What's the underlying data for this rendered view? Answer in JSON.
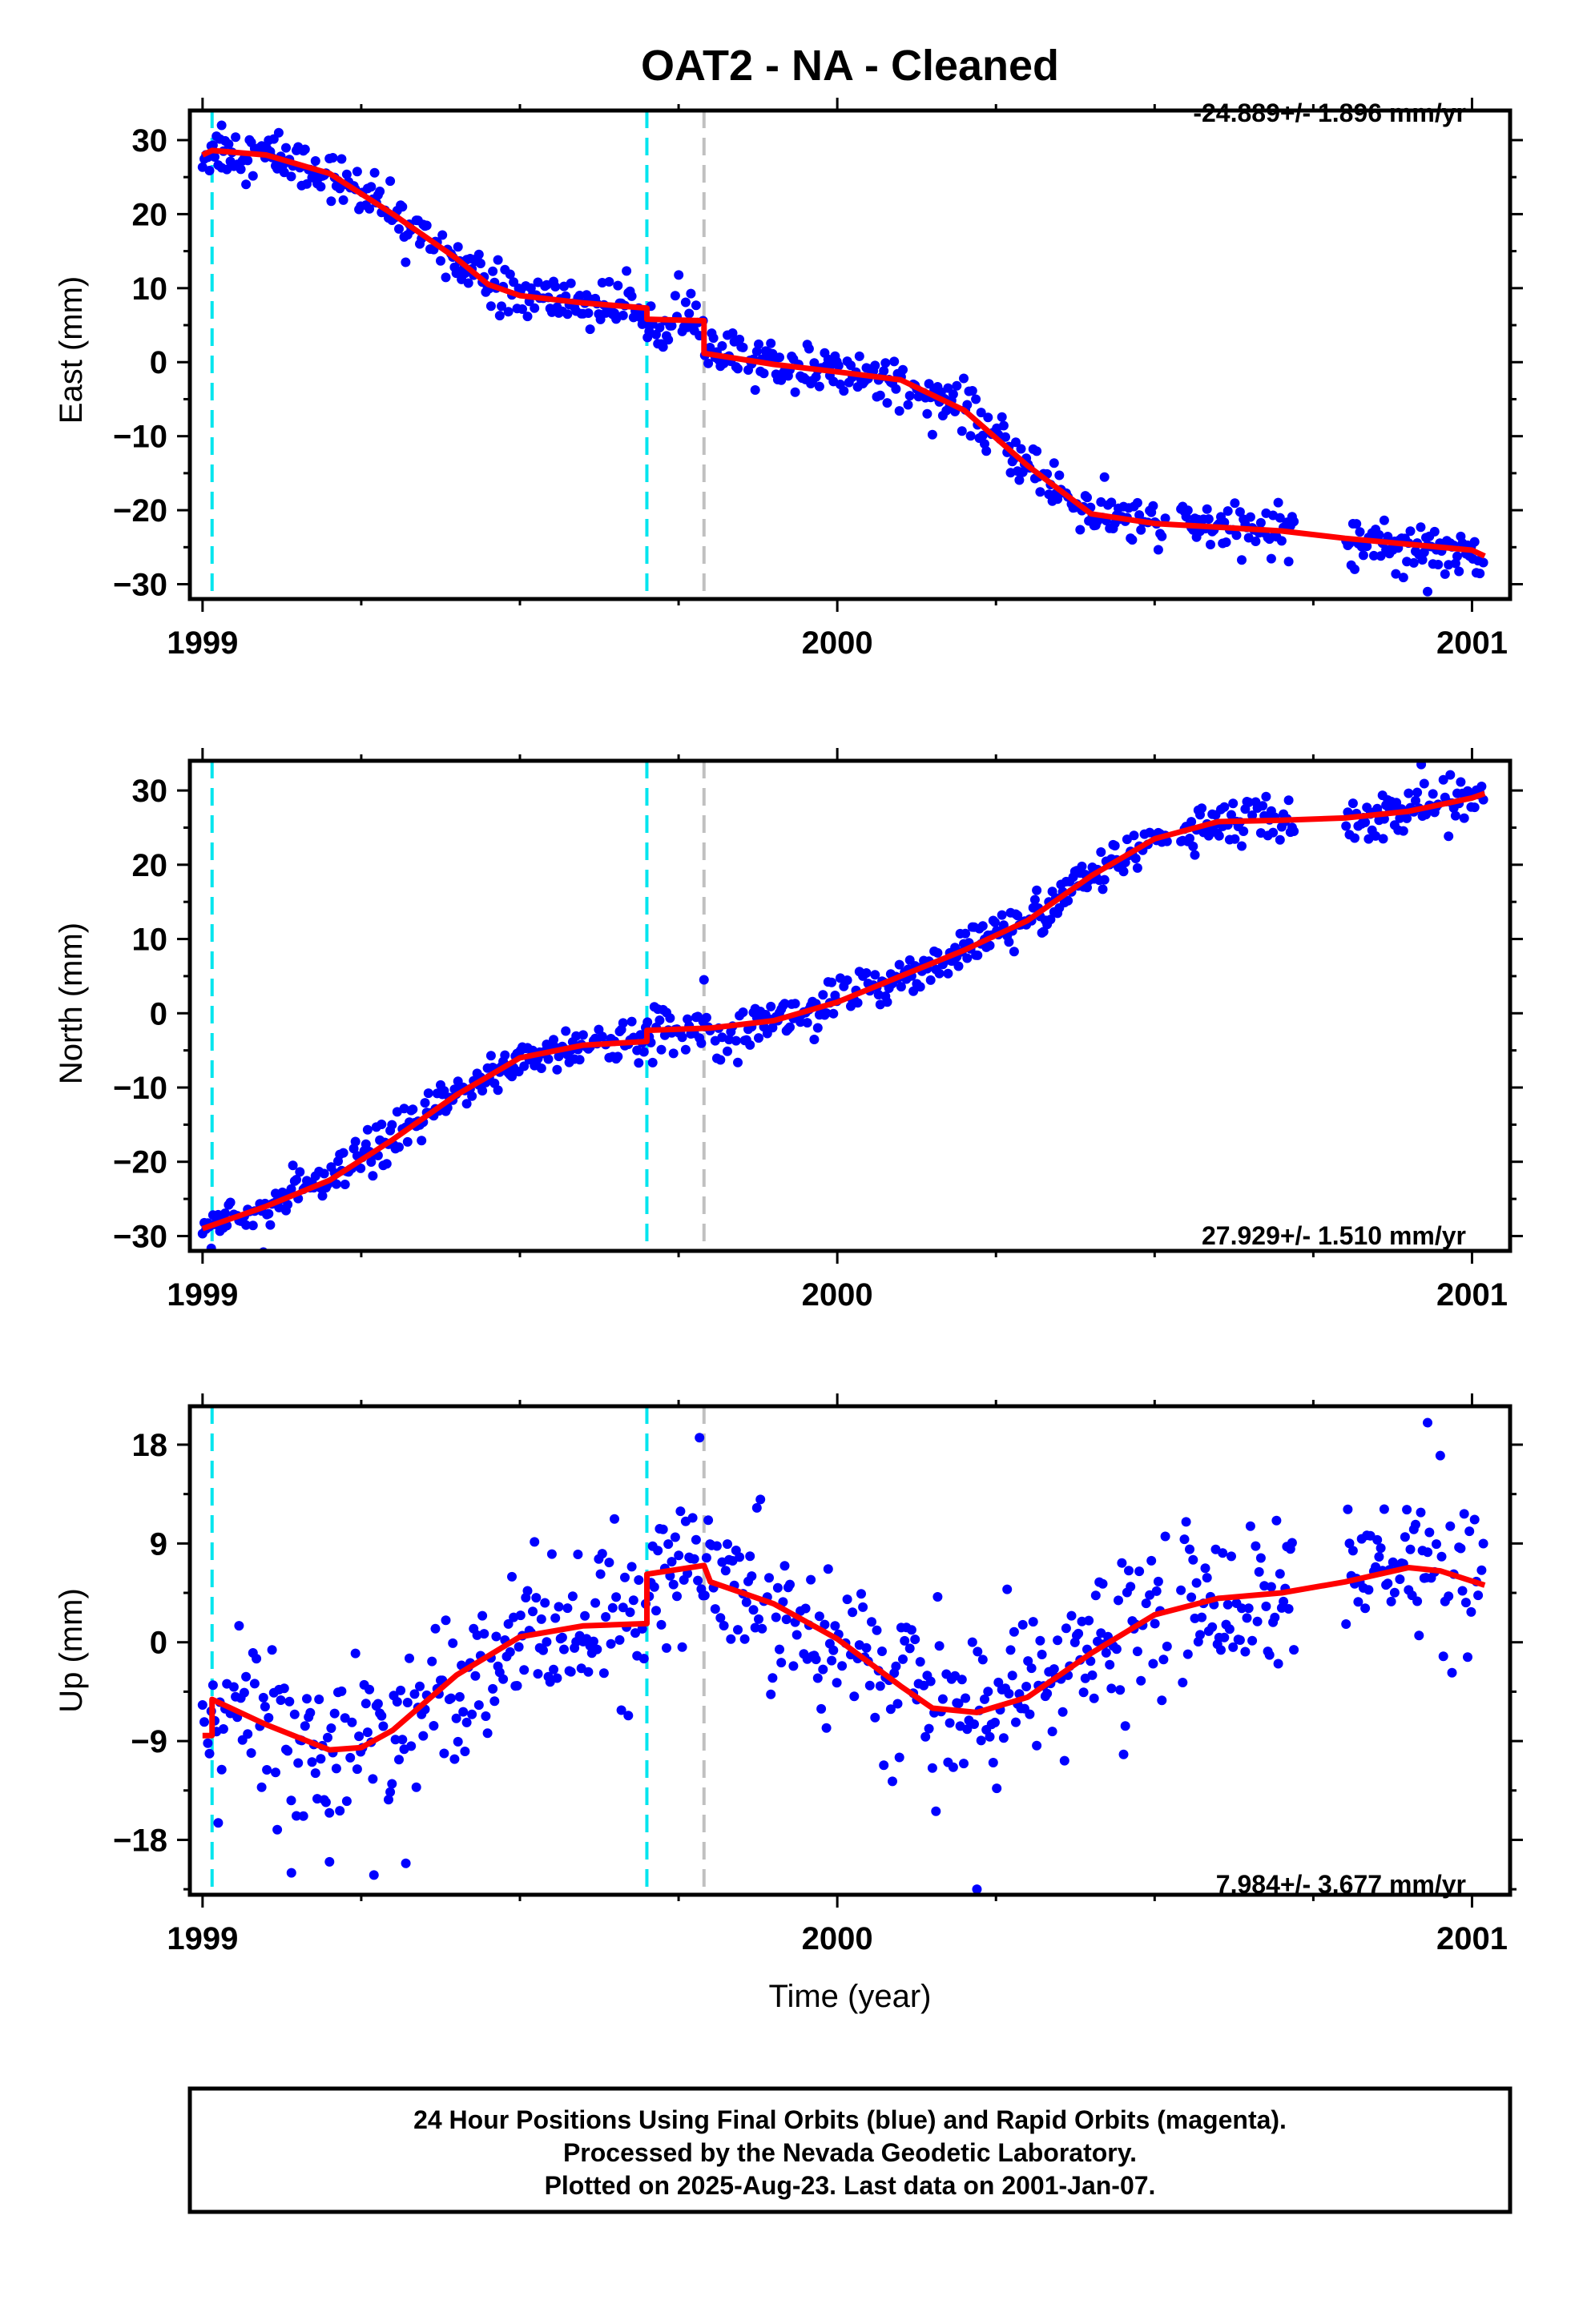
{
  "title": "OAT2  - NA - Cleaned",
  "colors": {
    "points": "#0000ff",
    "model": "#ff0000",
    "equipment_change": "#00e5ee",
    "earthquake": "#c0c0c0"
  },
  "chart_data": [
    {
      "type": "scatter",
      "component": "east",
      "ylabel": "East (mm)",
      "xlim": [
        1998.98,
        2001.06
      ],
      "ylim": [
        -32,
        34
      ],
      "yticks": [
        -30,
        -20,
        -10,
        0,
        10,
        20,
        30
      ],
      "xticks": [
        "1999",
        "2000",
        "2001"
      ],
      "rate_text": "-24.889+/- 1.896 mm/yr",
      "rate_position": "top-right",
      "vlines_cyan": [
        1999.015,
        1999.7
      ],
      "vlines_gray": [
        1999.79
      ],
      "offsets": [
        {
          "at": 1999.7,
          "jump": -1.5
        },
        {
          "at": 1999.79,
          "jump": -4.0
        }
      ],
      "model": [
        [
          1999.0,
          28.0
        ],
        [
          1999.015,
          28.6
        ],
        [
          1999.1,
          28.0
        ],
        [
          1999.2,
          25.5
        ],
        [
          1999.3,
          20.0
        ],
        [
          1999.4,
          14.0
        ],
        [
          1999.45,
          10.5
        ],
        [
          1999.5,
          9.0
        ],
        [
          1999.6,
          8.0
        ],
        [
          1999.7,
          7.3
        ],
        [
          1999.7,
          5.8
        ],
        [
          1999.79,
          5.6
        ],
        [
          1999.79,
          1.2
        ],
        [
          1999.9,
          -0.3
        ],
        [
          2000.0,
          -1.3
        ],
        [
          2000.1,
          -2.4
        ],
        [
          2000.2,
          -6.5
        ],
        [
          2000.3,
          -14.0
        ],
        [
          2000.4,
          -20.5
        ],
        [
          2000.5,
          -21.8
        ],
        [
          2000.6,
          -22.3
        ],
        [
          2000.7,
          -22.8
        ],
        [
          2000.8,
          -23.8
        ],
        [
          2000.9,
          -24.6
        ],
        [
          2001.0,
          -25.4
        ],
        [
          2001.02,
          -26.2
        ]
      ],
      "gaps": [
        [
          2000.52,
          2000.54
        ],
        [
          2000.72,
          2000.8
        ]
      ],
      "noise": 1.6,
      "outliers": [
        [
          1999.03,
          32.0
        ],
        [
          1999.12,
          31.0
        ],
        [
          1999.32,
          13.5
        ],
        [
          2000.93,
          -31.0
        ],
        [
          2000.88,
          -28.6
        ]
      ]
    },
    {
      "type": "scatter",
      "component": "north",
      "ylabel": "North (mm)",
      "xlim": [
        1998.98,
        2001.06
      ],
      "ylim": [
        -32,
        34
      ],
      "yticks": [
        -30,
        -20,
        -10,
        0,
        10,
        20,
        30
      ],
      "xticks": [
        "1999",
        "2000",
        "2001"
      ],
      "rate_text": "27.929+/- 1.510 mm/yr",
      "rate_position": "bottom-right",
      "vlines_cyan": [
        1999.015,
        1999.7
      ],
      "vlines_gray": [
        1999.79
      ],
      "offsets": [
        {
          "at": 1999.7,
          "jump": 1.5
        }
      ],
      "model": [
        [
          1999.0,
          -29.0
        ],
        [
          1999.1,
          -26.0
        ],
        [
          1999.2,
          -22.5
        ],
        [
          1999.3,
          -17.0
        ],
        [
          1999.4,
          -11.0
        ],
        [
          1999.5,
          -6.0
        ],
        [
          1999.6,
          -4.3
        ],
        [
          1999.7,
          -3.8
        ],
        [
          1999.7,
          -2.3
        ],
        [
          1999.8,
          -2.0
        ],
        [
          1999.9,
          -1.0
        ],
        [
          2000.0,
          1.5
        ],
        [
          2000.1,
          5.0
        ],
        [
          2000.2,
          8.5
        ],
        [
          2000.3,
          12.5
        ],
        [
          2000.4,
          18.5
        ],
        [
          2000.5,
          23.5
        ],
        [
          2000.6,
          25.8
        ],
        [
          2000.7,
          26.0
        ],
        [
          2000.8,
          26.3
        ],
        [
          2000.9,
          27.2
        ],
        [
          2001.0,
          29.0
        ],
        [
          2001.02,
          29.6
        ]
      ],
      "gaps": [
        [
          2000.52,
          2000.54
        ],
        [
          2000.72,
          2000.8
        ]
      ],
      "noise": 1.5,
      "outliers": [
        [
          1999.79,
          4.5
        ],
        [
          2000.92,
          33.5
        ],
        [
          2000.86,
          23.5
        ]
      ]
    },
    {
      "type": "scatter",
      "component": "up",
      "ylabel": "Up (mm)",
      "xlabel": "Time (year)",
      "xlim": [
        1998.98,
        2001.06
      ],
      "ylim": [
        -23,
        21.5
      ],
      "yticks": [
        -18,
        -9,
        0,
        9,
        18
      ],
      "xticks": [
        "1999",
        "2000",
        "2001"
      ],
      "rate_text": "7.984+/- 3.677 mm/yr",
      "rate_position": "bottom-right",
      "vlines_cyan": [
        1999.015,
        1999.7
      ],
      "vlines_gray": [
        1999.79
      ],
      "offsets": [
        {
          "at": 1999.015,
          "jump": 3.5
        },
        {
          "at": 1999.7,
          "jump": 4.5
        }
      ],
      "model": [
        [
          1999.0,
          -8.5
        ],
        [
          1999.015,
          -8.5
        ],
        [
          1999.015,
          -5.2
        ],
        [
          1999.1,
          -7.5
        ],
        [
          1999.2,
          -9.8
        ],
        [
          1999.25,
          -9.6
        ],
        [
          1999.3,
          -8.0
        ],
        [
          1999.4,
          -3.0
        ],
        [
          1999.5,
          0.5
        ],
        [
          1999.6,
          1.5
        ],
        [
          1999.7,
          1.7
        ],
        [
          1999.7,
          6.2
        ],
        [
          1999.79,
          7.0
        ],
        [
          1999.8,
          5.5
        ],
        [
          1999.9,
          3.5
        ],
        [
          2000.0,
          0.3
        ],
        [
          2000.1,
          -4.0
        ],
        [
          2000.15,
          -6.0
        ],
        [
          2000.22,
          -6.4
        ],
        [
          2000.3,
          -5.0
        ],
        [
          2000.4,
          -1.0
        ],
        [
          2000.5,
          2.5
        ],
        [
          2000.6,
          4.0
        ],
        [
          2000.7,
          4.5
        ],
        [
          2000.8,
          5.5
        ],
        [
          2000.9,
          6.8
        ],
        [
          2000.95,
          6.5
        ],
        [
          2001.02,
          5.2
        ]
      ],
      "gaps": [
        [
          2000.52,
          2000.54
        ],
        [
          2000.72,
          2000.8
        ]
      ],
      "noise": 3.5,
      "outliers": [
        [
          2000.93,
          20.0
        ],
        [
          2000.95,
          17.0
        ],
        [
          2000.22,
          -22.5
        ],
        [
          1999.14,
          -21.0
        ],
        [
          1999.27,
          -21.2
        ],
        [
          1999.2,
          -20.0
        ]
      ]
    }
  ],
  "footer": {
    "line1": "24 Hour Positions Using Final Orbits (blue) and Rapid Orbits (magenta).",
    "line2": "Processed by the Nevada Geodetic Laboratory.",
    "line3": "Plotted on 2025-Aug-23. Last data on 2001-Jan-07."
  }
}
